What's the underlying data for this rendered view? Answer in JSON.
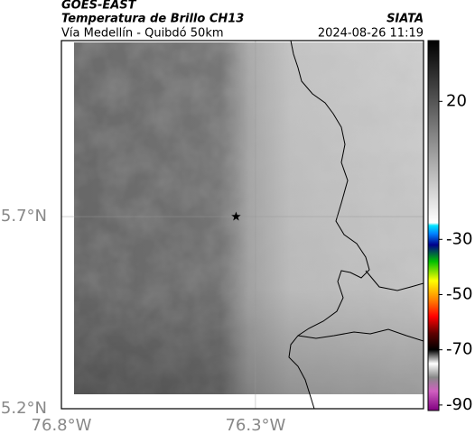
{
  "chart_data": {
    "type": "map",
    "title": "GOES-EAST",
    "subtitle": "Temperatura de Brillo CH13",
    "caption": "Vía Medellín - Quibdó 50km",
    "source": "SIATA",
    "timestamp": "2024-08-26 11:19",
    "xlim": [
      -76.8,
      -75.867
    ],
    "ylim": [
      5.2,
      6.158
    ],
    "xticks": [
      {
        "value": -76.8,
        "label": "76.8°W"
      },
      {
        "value": -76.3,
        "label": "76.3°W"
      }
    ],
    "yticks": [
      {
        "value": 5.2,
        "label": "5.2°N"
      },
      {
        "value": 5.7,
        "label": "5.7°N"
      }
    ],
    "grid": true,
    "marker": {
      "lon": -76.35,
      "lat": 5.7
    },
    "colorbar": {
      "lim": [
        -92,
        42
      ],
      "ticks": [
        20,
        -30,
        -50,
        -70,
        -90
      ],
      "stops": [
        {
          "value": 42,
          "color": "#000000"
        },
        {
          "value": -24,
          "color": "#ffffff"
        },
        {
          "value": -25,
          "color": "#00e5ff"
        },
        {
          "value": -28,
          "color": "#0080ff"
        },
        {
          "value": -32,
          "color": "#00008b"
        },
        {
          "value": -38,
          "color": "#00c000"
        },
        {
          "value": -45,
          "color": "#ffff00"
        },
        {
          "value": -52,
          "color": "#ff8000"
        },
        {
          "value": -58,
          "color": "#ff0000"
        },
        {
          "value": -64,
          "color": "#600000"
        },
        {
          "value": -70,
          "color": "#000000"
        },
        {
          "value": -75,
          "color": "#ffffff"
        },
        {
          "value": -80,
          "color": "#888888"
        },
        {
          "value": -85,
          "color": "#d060c0"
        },
        {
          "value": -92,
          "color": "#800080"
        }
      ]
    }
  }
}
